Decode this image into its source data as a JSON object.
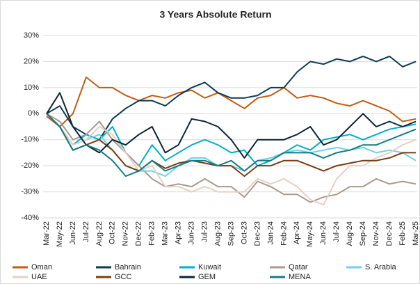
{
  "chart_data": {
    "type": "line",
    "title": "3 Years Absolute Return",
    "categories": [
      "Mar-22",
      "May-22",
      "Jun-22",
      "Jul-22",
      "Aug-22",
      "Oct-22",
      "Nov-22",
      "Dec-22",
      "Feb-23",
      "Mar-23",
      "Apr-23",
      "Jun-23",
      "Jul-23",
      "Aug-23",
      "Sep-23",
      "Oct-23",
      "Dec-23",
      "Jan-24",
      "Feb-24",
      "Apr-24",
      "May-24",
      "Jun-24",
      "Jul-24",
      "Aug-24",
      "Sep-24",
      "Nov-24",
      "Dec-24",
      "Feb-25",
      "Mar-25"
    ],
    "ylim": [
      -40,
      30
    ],
    "yticks": [
      {
        "value": -40,
        "label": "-40%"
      },
      {
        "value": -30,
        "label": "-30%"
      },
      {
        "value": -20,
        "label": "-20%"
      },
      {
        "value": -10,
        "label": "-10%"
      },
      {
        "value": 0,
        "label": "0%"
      },
      {
        "value": 10,
        "label": "10%"
      },
      {
        "value": 20,
        "label": "20%"
      },
      {
        "value": 30,
        "label": "30%"
      }
    ],
    "grid": true,
    "legend": "bottom",
    "series": [
      {
        "name": "Oman",
        "color": "#c55a11",
        "values": [
          -1,
          -5,
          0,
          14,
          10,
          10,
          7,
          5,
          7,
          6,
          8,
          9,
          6,
          8,
          5,
          2,
          6,
          7,
          10,
          6,
          7,
          6,
          4,
          3,
          5,
          3,
          1,
          -3,
          -2
        ]
      },
      {
        "name": "Bahrain",
        "color": "#0b3a53",
        "values": [
          0,
          3,
          -5,
          -8,
          -10,
          -2,
          2,
          5,
          5,
          3,
          7,
          10,
          12,
          8,
          6,
          6,
          7,
          10,
          10,
          16,
          20,
          19,
          21,
          20,
          22,
          20,
          22,
          18,
          20
        ]
      },
      {
        "name": "Kuwait",
        "color": "#00b0c8",
        "values": [
          0,
          -5,
          -12,
          -8,
          -10,
          -5,
          -15,
          -20,
          -12,
          -18,
          -15,
          -12,
          -10,
          -12,
          -15,
          -14,
          -20,
          -18,
          -15,
          -12,
          -14,
          -10,
          -9,
          -8,
          -10,
          -8,
          -6,
          -5,
          -4
        ]
      },
      {
        "name": "Qatar",
        "color": "#a79a8e",
        "values": [
          0,
          -3,
          -10,
          -8,
          -3,
          -10,
          -15,
          -20,
          -25,
          -28,
          -27,
          -28,
          -25,
          -28,
          -28,
          -32,
          -26,
          -28,
          -31,
          -31,
          -34,
          -32,
          -31,
          -28,
          -28,
          -25,
          -27,
          -26,
          -27
        ]
      },
      {
        "name": "S. Arabia",
        "color": "#6ed0e8",
        "values": [
          0,
          -5,
          -12,
          -10,
          -8,
          -14,
          -20,
          -22,
          -22,
          -24,
          -20,
          -17,
          -17,
          -20,
          -20,
          -22,
          -18,
          -17,
          -15,
          -14,
          -15,
          -14,
          -13,
          -14,
          -13,
          -15,
          -14,
          -15,
          -18
        ]
      },
      {
        "name": "UAE",
        "color": "#e6cfc5",
        "values": [
          0,
          -5,
          -12,
          -10,
          -5,
          -8,
          -15,
          -22,
          -20,
          -28,
          -28,
          -30,
          -28,
          -30,
          -30,
          -30,
          -25,
          -27,
          -25,
          -28,
          -33,
          -35,
          -25,
          -20,
          -20,
          -17,
          -15,
          -12,
          -10
        ]
      },
      {
        "name": "GCC",
        "color": "#7b3c10",
        "values": [
          0,
          -5,
          -14,
          -12,
          -10,
          -14,
          -20,
          -22,
          -18,
          -21,
          -19,
          -18,
          -19,
          -20,
          -20,
          -24,
          -20,
          -20,
          -18,
          -18,
          -20,
          -22,
          -20,
          -19,
          -18,
          -18,
          -17,
          -15,
          -15
        ]
      },
      {
        "name": "GEM",
        "color": "#0a2433",
        "values": [
          0,
          8,
          -5,
          -12,
          -15,
          -10,
          -12,
          -8,
          -5,
          -15,
          -12,
          -2,
          -3,
          -5,
          -10,
          -17,
          -10,
          -10,
          -10,
          -8,
          -5,
          -12,
          -10,
          -5,
          0,
          -5,
          -3,
          -5,
          -3
        ]
      },
      {
        "name": "MENA",
        "color": "#137c85",
        "values": [
          0,
          -5,
          -14,
          -12,
          -14,
          -18,
          -24,
          -22,
          -18,
          -22,
          -20,
          -18,
          -18,
          -20,
          -18,
          -22,
          -18,
          -18,
          -15,
          -15,
          -15,
          -17,
          -15,
          -14,
          -12,
          -12,
          -10,
          -8,
          -6
        ]
      }
    ]
  }
}
